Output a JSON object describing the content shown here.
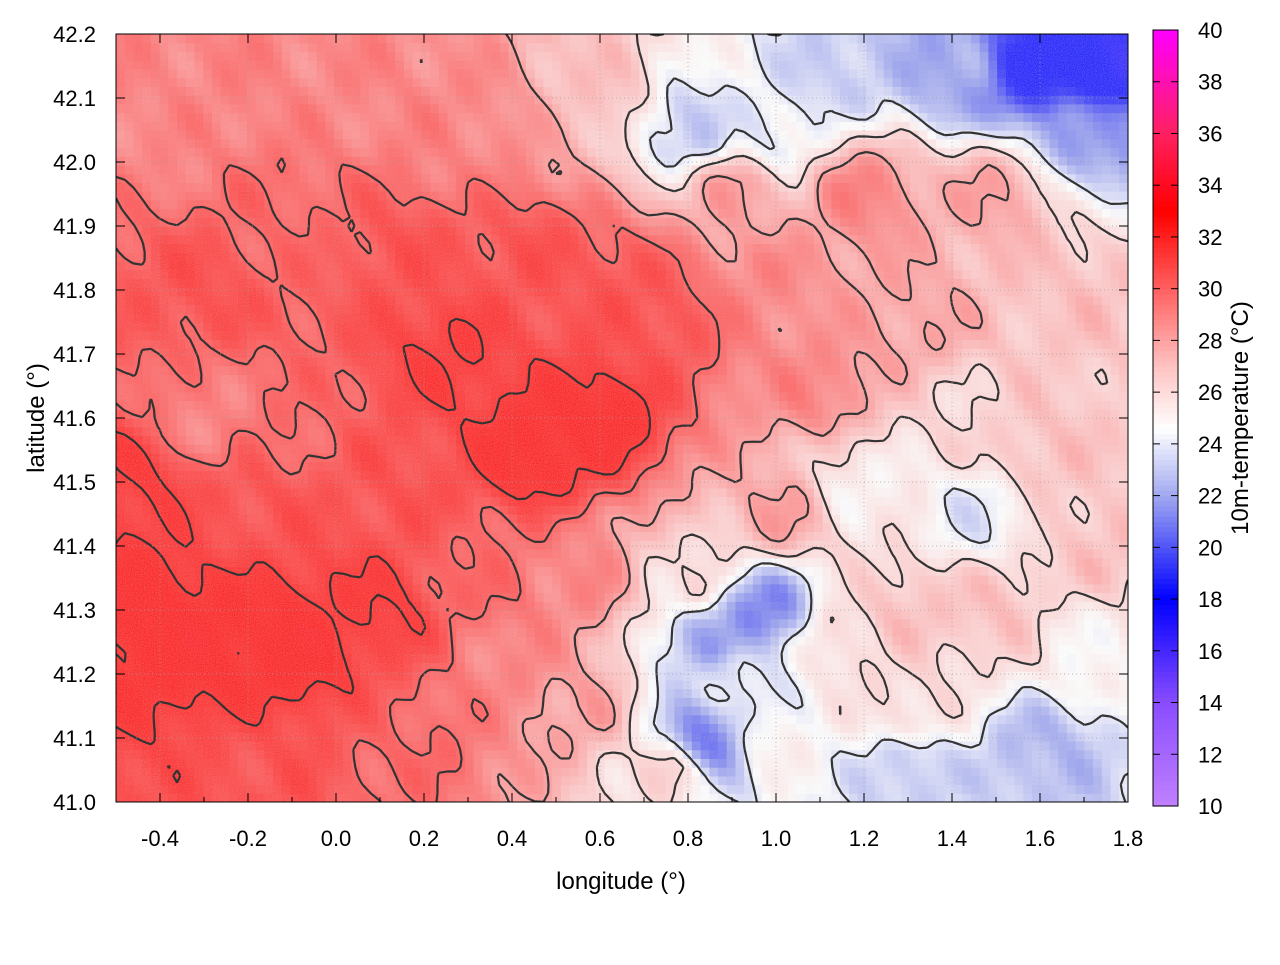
{
  "chart_data": {
    "type": "heatmap",
    "xlabel": "longitude (°)",
    "ylabel": "latitude (°)",
    "colorbar_label": "10m-temperature (°C)",
    "xlim": [
      -0.5,
      1.8
    ],
    "ylim": [
      41.0,
      42.2
    ],
    "xticks": [
      -0.4,
      -0.2,
      0.0,
      0.2,
      0.4,
      0.6,
      0.8,
      1.0,
      1.2,
      1.4,
      1.6,
      1.8
    ],
    "xtick_labels": [
      "-0.4",
      "-0.2",
      "0.0",
      "0.2",
      "0.4",
      "0.6",
      "0.8",
      "1.0",
      "1.2",
      "1.4",
      "1.6",
      "1.8"
    ],
    "yticks": [
      41.0,
      41.1,
      41.2,
      41.3,
      41.4,
      41.5,
      41.6,
      41.7,
      41.8,
      41.9,
      42.0,
      42.1,
      42.2
    ],
    "ytick_labels": [
      "41.0",
      "41.1",
      "41.2",
      "41.3",
      "41.4",
      "41.5",
      "41.6",
      "41.7",
      "41.8",
      "41.9",
      "42.0",
      "42.1",
      "42.2"
    ],
    "colorbar_range": [
      10,
      40
    ],
    "colorbar_ticks": [
      10,
      12,
      14,
      16,
      18,
      20,
      22,
      24,
      26,
      28,
      30,
      32,
      34,
      36,
      38,
      40
    ],
    "colorbar_tick_labels": [
      "10",
      "12",
      "14",
      "16",
      "18",
      "20",
      "22",
      "24",
      "26",
      "28",
      "30",
      "32",
      "34",
      "36",
      "38",
      "40"
    ],
    "colormap": [
      {
        "value": 10,
        "color": "#c080ff"
      },
      {
        "value": 14,
        "color": "#8a4dff"
      },
      {
        "value": 18,
        "color": "#0000ff"
      },
      {
        "value": 22,
        "color": "#a0a8f0"
      },
      {
        "value": 24.6,
        "color": "#ffffff"
      },
      {
        "value": 27,
        "color": "#ffc2c2"
      },
      {
        "value": 30,
        "color": "#ff6060"
      },
      {
        "value": 33,
        "color": "#ff0000"
      },
      {
        "value": 36,
        "color": "#ff2060"
      },
      {
        "value": 40,
        "color": "#ff00ff"
      }
    ],
    "grid": true,
    "contour_color": "#333333",
    "field_samples": [
      {
        "lon": -0.45,
        "lat": 41.3,
        "temp": 33
      },
      {
        "lon": -0.3,
        "lat": 41.25,
        "temp": 33
      },
      {
        "lon": -0.1,
        "lat": 41.25,
        "temp": 33
      },
      {
        "lon": 0.1,
        "lat": 41.3,
        "temp": 32
      },
      {
        "lon": -0.45,
        "lat": 41.5,
        "temp": 32
      },
      {
        "lon": -0.2,
        "lat": 41.45,
        "temp": 31
      },
      {
        "lon": -0.3,
        "lat": 41.6,
        "temp": 29
      },
      {
        "lon": -0.3,
        "lat": 41.8,
        "temp": 31
      },
      {
        "lon": -0.1,
        "lat": 41.9,
        "temp": 30
      },
      {
        "lon": 0.15,
        "lat": 41.85,
        "temp": 31
      },
      {
        "lon": 0.25,
        "lat": 41.7,
        "temp": 32
      },
      {
        "lon": 0.45,
        "lat": 41.55,
        "temp": 33
      },
      {
        "lon": 0.6,
        "lat": 41.6,
        "temp": 33
      },
      {
        "lon": 0.75,
        "lat": 41.75,
        "temp": 31
      },
      {
        "lon": 0.45,
        "lat": 41.85,
        "temp": 31
      },
      {
        "lon": 0.3,
        "lat": 42.05,
        "temp": 29
      },
      {
        "lon": 0.0,
        "lat": 42.1,
        "temp": 29
      },
      {
        "lon": -0.4,
        "lat": 42.05,
        "temp": 29
      },
      {
        "lon": 0.6,
        "lat": 42.1,
        "temp": 27
      },
      {
        "lon": 0.8,
        "lat": 42.05,
        "temp": 23
      },
      {
        "lon": 1.0,
        "lat": 42.05,
        "temp": 24
      },
      {
        "lon": 1.15,
        "lat": 42.15,
        "temp": 23
      },
      {
        "lon": 1.4,
        "lat": 42.15,
        "temp": 22
      },
      {
        "lon": 1.6,
        "lat": 42.15,
        "temp": 18
      },
      {
        "lon": 1.75,
        "lat": 42.15,
        "temp": 17
      },
      {
        "lon": 1.7,
        "lat": 42.05,
        "temp": 22
      },
      {
        "lon": 1.2,
        "lat": 41.95,
        "temp": 29
      },
      {
        "lon": 1.5,
        "lat": 41.95,
        "temp": 28
      },
      {
        "lon": 1.7,
        "lat": 41.8,
        "temp": 27
      },
      {
        "lon": 1.3,
        "lat": 41.75,
        "temp": 28
      },
      {
        "lon": 1.1,
        "lat": 41.65,
        "temp": 29
      },
      {
        "lon": 1.2,
        "lat": 41.5,
        "temp": 25
      },
      {
        "lon": 1.45,
        "lat": 41.45,
        "temp": 24
      },
      {
        "lon": 1.6,
        "lat": 41.55,
        "temp": 27
      },
      {
        "lon": 1.75,
        "lat": 41.4,
        "temp": 27
      },
      {
        "lon": 1.0,
        "lat": 41.45,
        "temp": 28
      },
      {
        "lon": 0.8,
        "lat": 41.35,
        "temp": 26
      },
      {
        "lon": 0.97,
        "lat": 41.3,
        "temp": 21
      },
      {
        "lon": 0.85,
        "lat": 41.25,
        "temp": 22
      },
      {
        "lon": 0.84,
        "lat": 41.1,
        "temp": 21
      },
      {
        "lon": 0.9,
        "lat": 41.2,
        "temp": 24
      },
      {
        "lon": 1.15,
        "lat": 41.25,
        "temp": 26
      },
      {
        "lon": 1.3,
        "lat": 41.3,
        "temp": 27
      },
      {
        "lon": 1.5,
        "lat": 41.3,
        "temp": 27
      },
      {
        "lon": 1.7,
        "lat": 41.25,
        "temp": 25
      },
      {
        "lon": 1.3,
        "lat": 41.15,
        "temp": 26
      },
      {
        "lon": 1.0,
        "lat": 41.1,
        "temp": 25
      },
      {
        "lon": 1.3,
        "lat": 41.05,
        "temp": 23
      },
      {
        "lon": 1.6,
        "lat": 41.08,
        "temp": 22.5
      },
      {
        "lon": 0.75,
        "lat": 41.05,
        "temp": 26
      },
      {
        "lon": 0.55,
        "lat": 41.15,
        "temp": 28
      },
      {
        "lon": 0.4,
        "lat": 41.2,
        "temp": 29
      },
      {
        "lon": 0.2,
        "lat": 41.1,
        "temp": 30
      },
      {
        "lon": -0.2,
        "lat": 41.05,
        "temp": 31
      },
      {
        "lon": 0.55,
        "lat": 41.35,
        "temp": 29
      },
      {
        "lon": 0.35,
        "lat": 41.35,
        "temp": 30
      },
      {
        "lon": 0.65,
        "lat": 41.8,
        "temp": 31
      },
      {
        "lon": 0.95,
        "lat": 41.8,
        "temp": 29
      },
      {
        "lon": 0.9,
        "lat": 41.95,
        "temp": 28
      },
      {
        "lon": 1.4,
        "lat": 41.6,
        "temp": 26
      },
      {
        "lon": -0.1,
        "lat": 41.6,
        "temp": 30
      },
      {
        "lon": 0.15,
        "lat": 41.5,
        "temp": 31
      }
    ]
  }
}
